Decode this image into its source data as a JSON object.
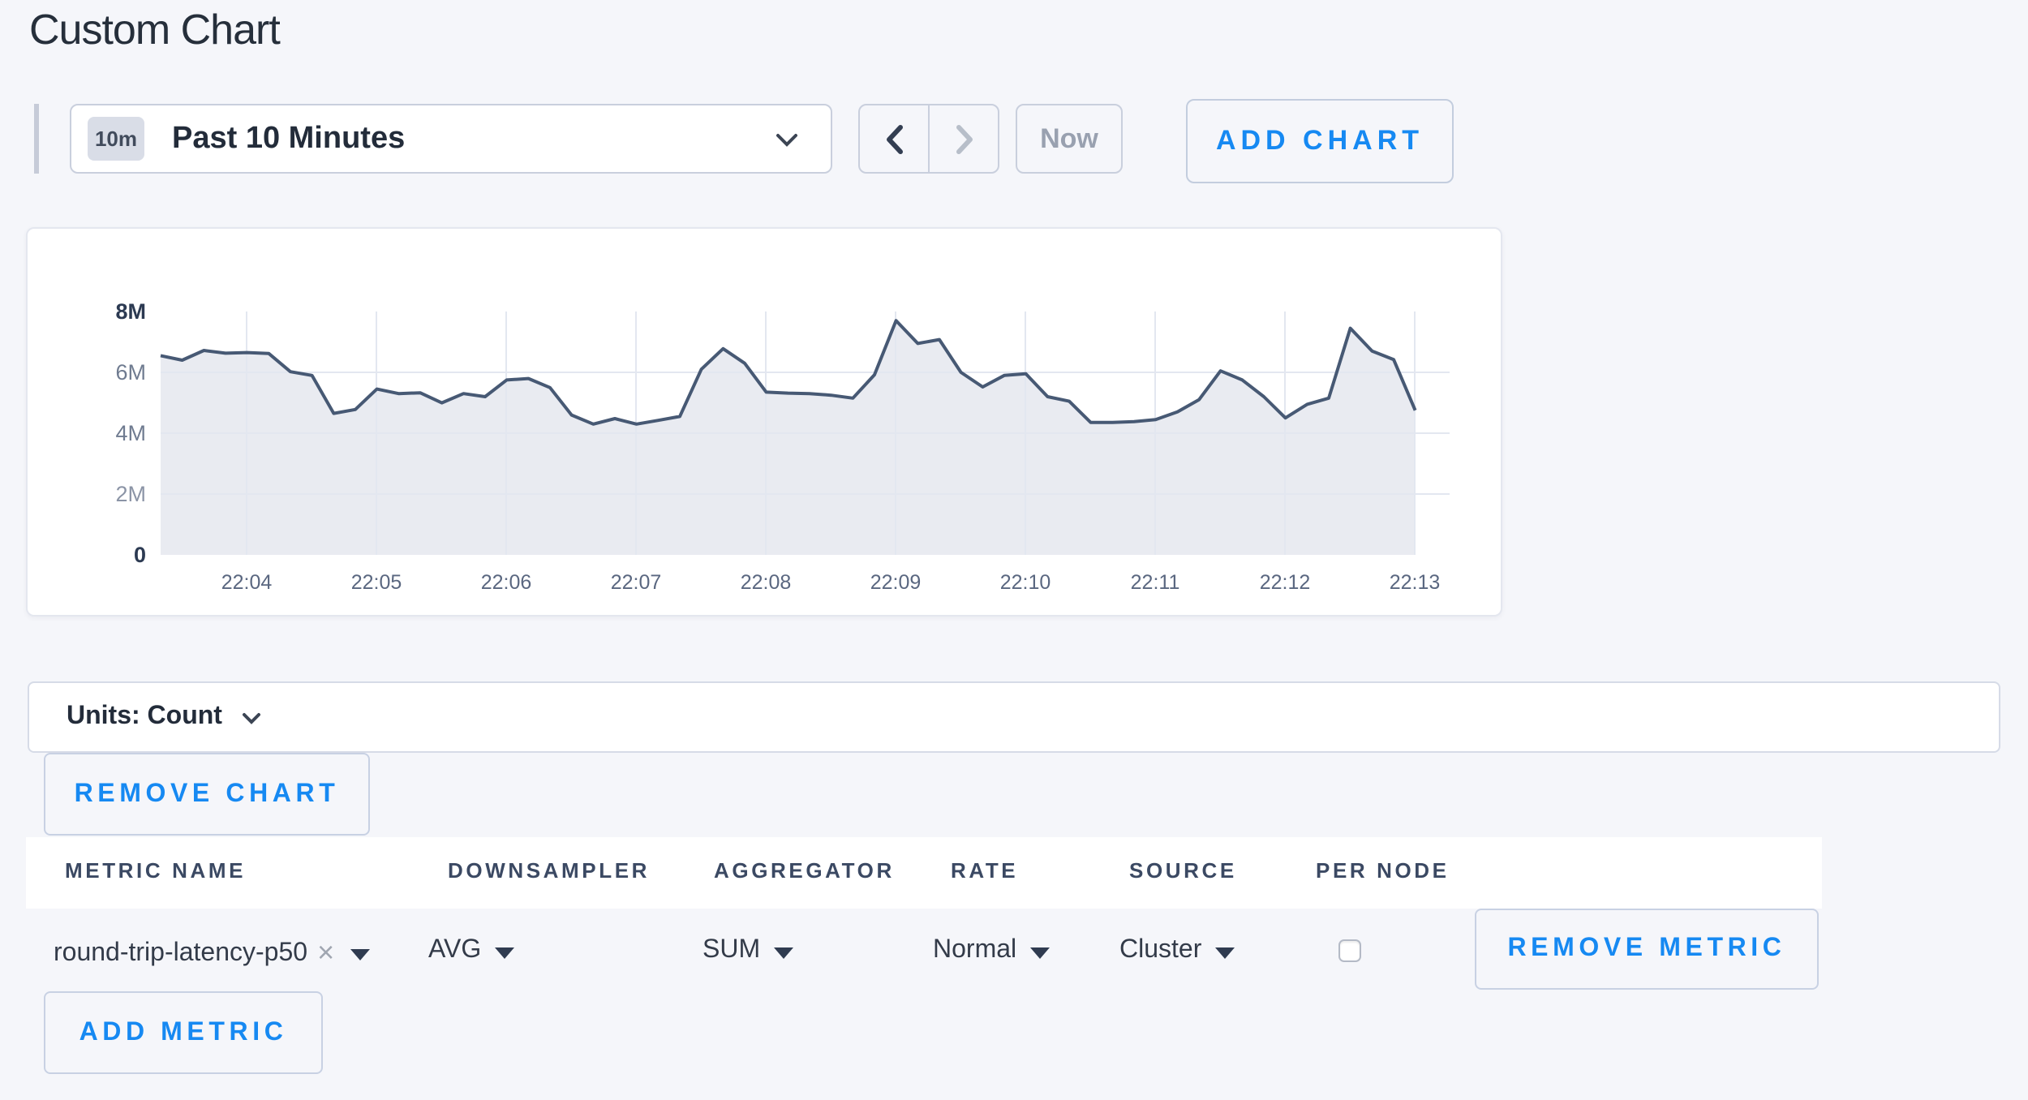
{
  "title": "Custom Chart",
  "toolbar": {
    "time_selector": {
      "badge": "10m",
      "label": "Past 10 Minutes"
    },
    "now_button": "Now",
    "add_chart_button": "ADD CHART"
  },
  "chart_data": {
    "type": "area",
    "series": [
      {
        "name": "round-trip-latency-p50",
        "values_millions": [
          6.55,
          6.4,
          6.72,
          6.63,
          6.65,
          6.62,
          6.02,
          5.9,
          4.65,
          4.78,
          5.45,
          5.3,
          5.33,
          5.0,
          5.3,
          5.2,
          5.75,
          5.8,
          5.5,
          4.6,
          4.3,
          4.48,
          4.3,
          4.42,
          4.55,
          6.1,
          6.78,
          6.3,
          5.35,
          5.32,
          5.3,
          5.25,
          5.15,
          5.92,
          7.7,
          6.95,
          7.08,
          6.0,
          5.52,
          5.9,
          5.95,
          5.2,
          5.05,
          4.35,
          4.35,
          4.38,
          4.45,
          4.7,
          5.1,
          6.05,
          5.75,
          5.2,
          4.5,
          4.95,
          5.15,
          7.45,
          6.7,
          6.42,
          4.75
        ]
      }
    ],
    "x_ticks": [
      "22:04",
      "22:05",
      "22:06",
      "22:07",
      "22:08",
      "22:09",
      "22:10",
      "22:11",
      "22:12",
      "22:13"
    ],
    "y_ticks": [
      {
        "label": "8M",
        "value": 8,
        "strong": true
      },
      {
        "label": "6M",
        "value": 6,
        "strong": false
      },
      {
        "label": "4M",
        "value": 4,
        "strong": false
      },
      {
        "label": "2M",
        "value": 2,
        "strong": false
      },
      {
        "label": "0",
        "value": 0,
        "strong": true
      }
    ],
    "ylim_millions": [
      0,
      8
    ],
    "points_per_tick": 6,
    "first_tick_point_index": 4,
    "line_color": "#475974",
    "fill_color": "#e9ebf1",
    "grid_color": "#e3e7f0"
  },
  "units_bar": {
    "label": "Units: Count"
  },
  "remove_chart_button": "REMOVE CHART",
  "metrics_table": {
    "headers": [
      "METRIC NAME",
      "DOWNSAMPLER",
      "AGGREGATOR",
      "RATE",
      "SOURCE",
      "PER NODE"
    ],
    "rows": [
      {
        "metric_name": "round-trip-latency-p50",
        "clear_icon": "×",
        "downsampler": "AVG",
        "aggregator": "SUM",
        "rate": "Normal",
        "source": "Cluster",
        "per_node_checked": false,
        "remove_button": "REMOVE METRIC"
      }
    ],
    "add_metric_button": "ADD METRIC"
  }
}
